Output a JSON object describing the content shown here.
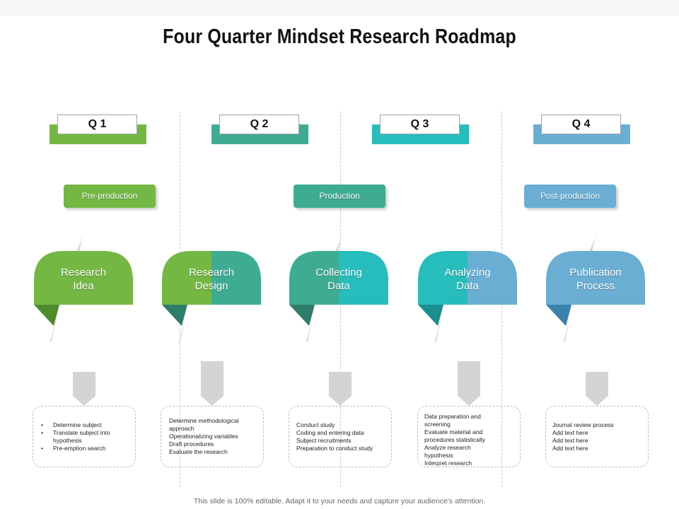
{
  "title": "Four Quarter Mindset Research Roadmap",
  "quarters": [
    {
      "label": "Q 1",
      "color": "#74b843"
    },
    {
      "label": "Q 2",
      "color": "#3eac93"
    },
    {
      "label": "Q 3",
      "color": "#27bdbd"
    },
    {
      "label": "Q 4",
      "color": "#6aaed3"
    }
  ],
  "phases": [
    {
      "label": "Pre-production",
      "color": "#74b843"
    },
    {
      "label": "Production",
      "color": "#3eac93"
    },
    {
      "label": "Post-production",
      "color": "#6aaed3"
    }
  ],
  "steps": [
    {
      "line1": "Research",
      "line2": "Idea",
      "color": "#74b843",
      "color2": "#74b843",
      "shade": "#4f8a2c"
    },
    {
      "line1": "Research",
      "line2": "Design",
      "color": "#74b843",
      "color2": "#3eac93",
      "shade": "#2e7d6a"
    },
    {
      "line1": "Collecting",
      "line2": "Data",
      "color": "#3eac93",
      "color2": "#27bdbd",
      "shade": "#2e7d6a"
    },
    {
      "line1": "Analyzing",
      "line2": "Data",
      "color": "#27bdbd",
      "color2": "#6aaed3",
      "shade": "#1b8f8f"
    },
    {
      "line1": "Publication",
      "line2": "Process",
      "color": "#6aaed3",
      "color2": "#6aaed3",
      "shade": "#3a82ad"
    }
  ],
  "details": [
    {
      "bulleted": true,
      "items": [
        "Determine subject",
        "Translate subject into hypothesis",
        "Pre-emption search"
      ]
    },
    {
      "bulleted": false,
      "items": [
        "Determine methodological approach",
        "Operationalizing  variables",
        "Draft procedures",
        "Evaluate the research"
      ]
    },
    {
      "bulleted": false,
      "items": [
        "Conduct study",
        "Coding and entering data",
        "Subject recruitments",
        "Preparation  to conduct study"
      ]
    },
    {
      "bulleted": false,
      "items": [
        "Data preparation  and screening",
        "Evaluate material and procedures statistically",
        "Analyze research hypothesis",
        "Interpret research"
      ]
    },
    {
      "bulleted": false,
      "items": [
        "Journal review process",
        "Add text here",
        "Add text here",
        "Add text here"
      ]
    }
  ],
  "footer": "This slide is 100% editable. Adapt it to your needs and capture your audience's attention."
}
